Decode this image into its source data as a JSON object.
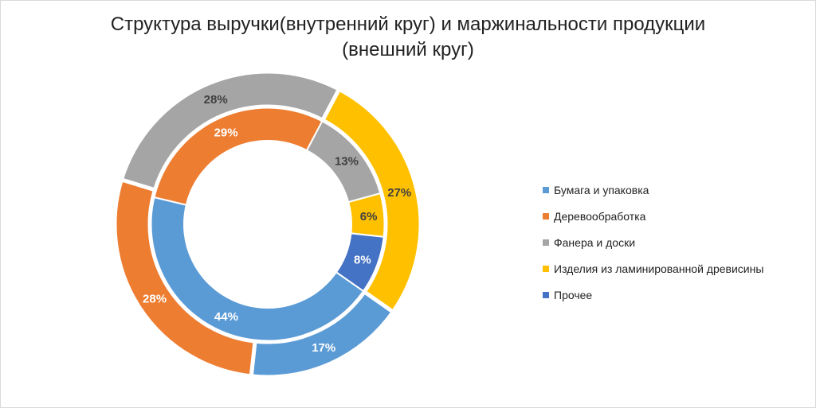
{
  "chart_data": {
    "type": "doughnut",
    "title_line1": "Структура выручки(внутренний круг) и маржинальности продукции",
    "title_line2": "(внешний круг)",
    "categories": [
      "Бумага и упаковка",
      "Деревообработка",
      "Фанера и доски",
      "Изделия из ламинированной древисины",
      "Прочее"
    ],
    "colors": [
      "#5b9bd5",
      "#ed7d31",
      "#a5a5a5",
      "#ffc000",
      "#4472c4"
    ],
    "series": [
      {
        "name": "Выручка (внутренний круг)",
        "values": [
          44,
          29,
          13,
          6,
          8
        ]
      },
      {
        "name": "Маржинальность (внешний круг)",
        "values": [
          17,
          28,
          28,
          27,
          0
        ]
      }
    ],
    "legend_position": "right"
  }
}
